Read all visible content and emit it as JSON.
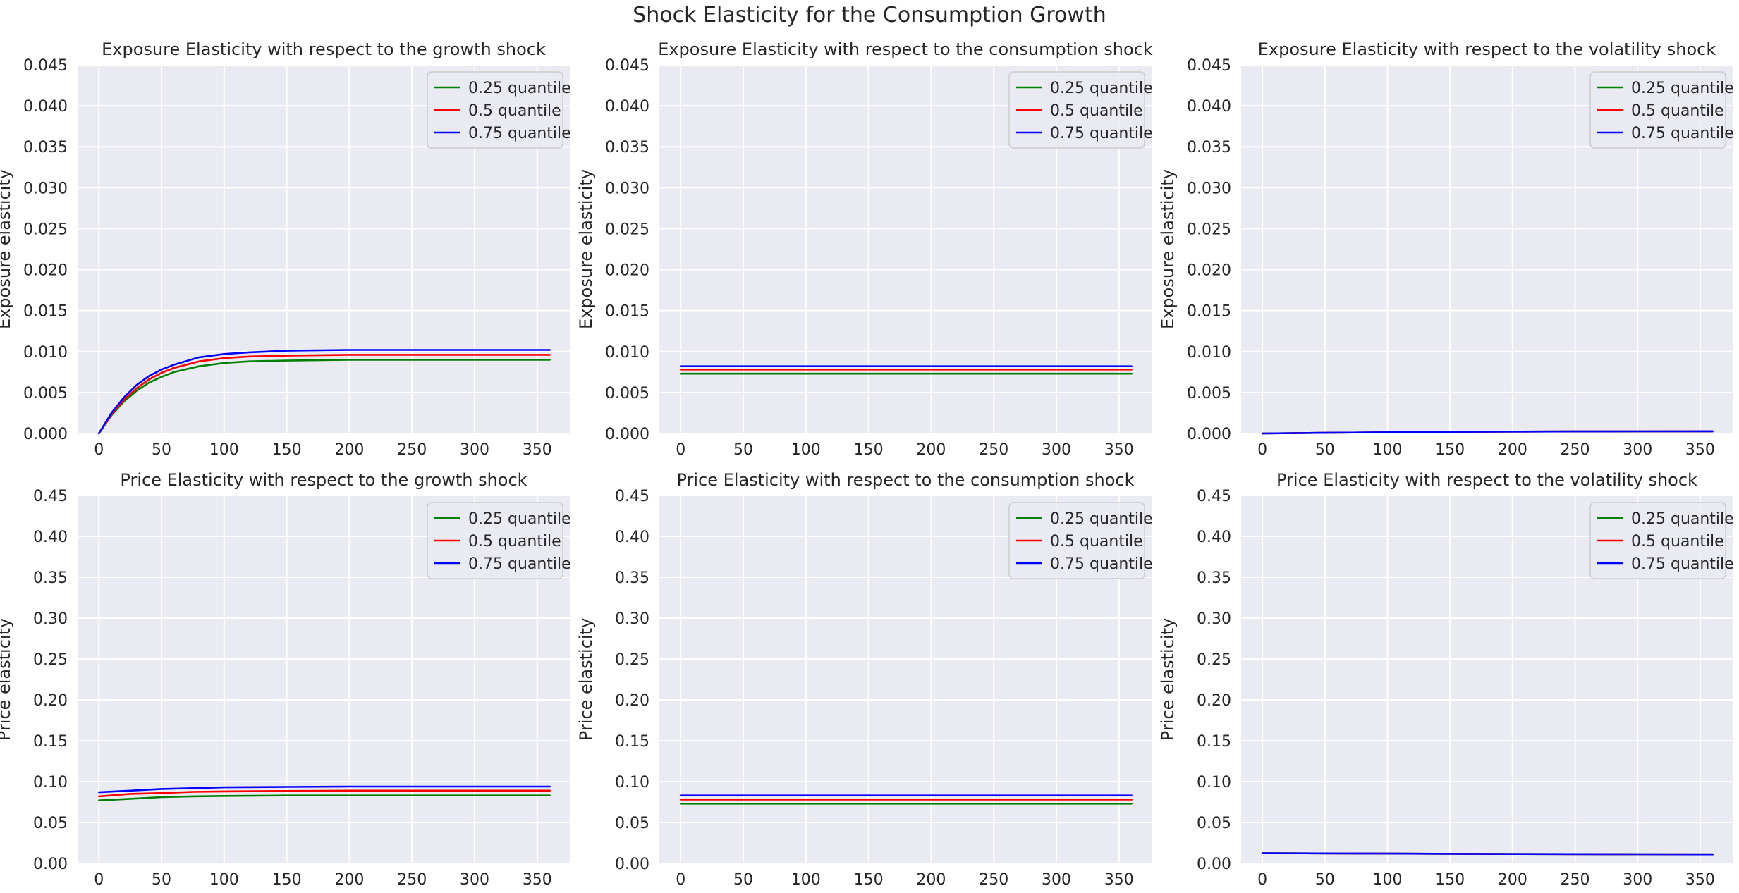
{
  "figure": {
    "suptitle": "Shock Elasticity for the Consumption Growth"
  },
  "colors": {
    "background": "#eaeaf2",
    "grid": "#ffffff",
    "q25": "#008000",
    "q50": "#ff0000",
    "q75": "#0000ff",
    "text": "#262626"
  },
  "chart_data": [
    {
      "type": "line",
      "title": "Exposure Elasticity with respect to the growth shock",
      "ylabel": "Exposure elasticity",
      "xlabel": "",
      "xlim": [
        -17,
        376
      ],
      "ylim": [
        0,
        0.045
      ],
      "xticks": [
        0,
        50,
        100,
        150,
        200,
        250,
        300,
        350
      ],
      "yticks": [
        "0.000",
        "0.005",
        "0.010",
        "0.015",
        "0.020",
        "0.025",
        "0.030",
        "0.035",
        "0.040",
        "0.045"
      ],
      "grid": true,
      "legend": "top-right",
      "x": [
        0,
        10,
        20,
        30,
        40,
        50,
        60,
        80,
        100,
        120,
        150,
        200,
        250,
        300,
        360
      ],
      "series": [
        {
          "name": "0.25 quantile",
          "color": "#008000",
          "values": [
            0,
            0.0022,
            0.0039,
            0.0052,
            0.0062,
            0.0069,
            0.0075,
            0.0082,
            0.0086,
            0.0088,
            0.0089,
            0.009,
            0.009,
            0.009,
            0.009
          ]
        },
        {
          "name": "0.5 quantile",
          "color": "#ff0000",
          "values": [
            0,
            0.0023,
            0.0041,
            0.0055,
            0.0066,
            0.0074,
            0.008,
            0.0088,
            0.0092,
            0.0094,
            0.0095,
            0.0096,
            0.0096,
            0.0096,
            0.0096
          ]
        },
        {
          "name": "0.75 quantile",
          "color": "#0000ff",
          "values": [
            0,
            0.0025,
            0.0044,
            0.0059,
            0.007,
            0.0078,
            0.0084,
            0.0093,
            0.0097,
            0.0099,
            0.0101,
            0.0102,
            0.0102,
            0.0102,
            0.0102
          ]
        }
      ]
    },
    {
      "type": "line",
      "title": "Exposure Elasticity with respect to the consumption shock",
      "ylabel": "Exposure elasticity",
      "xlabel": "",
      "xlim": [
        -17,
        376
      ],
      "ylim": [
        0,
        0.045
      ],
      "xticks": [
        0,
        50,
        100,
        150,
        200,
        250,
        300,
        350
      ],
      "yticks": [
        "0.000",
        "0.005",
        "0.010",
        "0.015",
        "0.020",
        "0.025",
        "0.030",
        "0.035",
        "0.040",
        "0.045"
      ],
      "grid": true,
      "legend": "top-right",
      "x": [
        0,
        360
      ],
      "series": [
        {
          "name": "0.25 quantile",
          "color": "#008000",
          "values": [
            0.0073,
            0.0073
          ]
        },
        {
          "name": "0.5 quantile",
          "color": "#ff0000",
          "values": [
            0.0078,
            0.0078
          ]
        },
        {
          "name": "0.75 quantile",
          "color": "#0000ff",
          "values": [
            0.0082,
            0.0082
          ]
        }
      ]
    },
    {
      "type": "line",
      "title": "Exposure Elasticity with respect to the volatility shock",
      "ylabel": "Exposure elasticity",
      "xlabel": "",
      "xlim": [
        -17,
        376
      ],
      "ylim": [
        0,
        0.045
      ],
      "xticks": [
        0,
        50,
        100,
        150,
        200,
        250,
        300,
        350
      ],
      "yticks": [
        "0.000",
        "0.005",
        "0.010",
        "0.015",
        "0.020",
        "0.025",
        "0.030",
        "0.035",
        "0.040",
        "0.045"
      ],
      "grid": true,
      "legend": "top-right",
      "x": [
        0,
        50,
        100,
        150,
        200,
        250,
        300,
        360
      ],
      "series": [
        {
          "name": "0.25 quantile",
          "color": "#008000",
          "values": [
            0,
            8e-05,
            0.00015,
            0.0002,
            0.00023,
            0.00025,
            0.00026,
            0.00027
          ]
        },
        {
          "name": "0.5 quantile",
          "color": "#ff0000",
          "values": [
            0,
            8e-05,
            0.00015,
            0.0002,
            0.00023,
            0.00025,
            0.00026,
            0.00027
          ]
        },
        {
          "name": "0.75 quantile",
          "color": "#0000ff",
          "values": [
            0,
            8e-05,
            0.00015,
            0.0002,
            0.00023,
            0.00025,
            0.00026,
            0.00027
          ]
        }
      ]
    },
    {
      "type": "line",
      "title": "Price Elasticity with respect to the growth shock",
      "ylabel": "Price elasticity",
      "xlabel": "",
      "xlim": [
        -17,
        376
      ],
      "ylim": [
        0,
        0.45
      ],
      "xticks": [
        0,
        50,
        100,
        150,
        200,
        250,
        300,
        350
      ],
      "yticks": [
        "0.00",
        "0.05",
        "0.10",
        "0.15",
        "0.20",
        "0.25",
        "0.30",
        "0.35",
        "0.40",
        "0.45"
      ],
      "grid": true,
      "legend": "top-right",
      "x": [
        0,
        25,
        50,
        75,
        100,
        150,
        200,
        250,
        300,
        360
      ],
      "series": [
        {
          "name": "0.25 quantile",
          "color": "#008000",
          "values": [
            0.077,
            0.079,
            0.081,
            0.082,
            0.0825,
            0.083,
            0.083,
            0.083,
            0.083,
            0.083
          ]
        },
        {
          "name": "0.5 quantile",
          "color": "#ff0000",
          "values": [
            0.082,
            0.085,
            0.086,
            0.0875,
            0.088,
            0.0885,
            0.089,
            0.089,
            0.089,
            0.089
          ]
        },
        {
          "name": "0.75 quantile",
          "color": "#0000ff",
          "values": [
            0.087,
            0.089,
            0.091,
            0.092,
            0.093,
            0.0935,
            0.094,
            0.094,
            0.094,
            0.094
          ]
        }
      ]
    },
    {
      "type": "line",
      "title": "Price Elasticity with respect to the consumption shock",
      "ylabel": "Price elasticity",
      "xlabel": "",
      "xlim": [
        -17,
        376
      ],
      "ylim": [
        0,
        0.45
      ],
      "xticks": [
        0,
        50,
        100,
        150,
        200,
        250,
        300,
        350
      ],
      "yticks": [
        "0.00",
        "0.05",
        "0.10",
        "0.15",
        "0.20",
        "0.25",
        "0.30",
        "0.35",
        "0.40",
        "0.45"
      ],
      "grid": true,
      "legend": "top-right",
      "x": [
        0,
        360
      ],
      "series": [
        {
          "name": "0.25 quantile",
          "color": "#008000",
          "values": [
            0.073,
            0.073
          ]
        },
        {
          "name": "0.5 quantile",
          "color": "#ff0000",
          "values": [
            0.078,
            0.078
          ]
        },
        {
          "name": "0.75 quantile",
          "color": "#0000ff",
          "values": [
            0.083,
            0.083
          ]
        }
      ]
    },
    {
      "type": "line",
      "title": "Price Elasticity with respect to the volatility shock",
      "ylabel": "Price elasticity",
      "xlabel": "",
      "xlim": [
        -17,
        376
      ],
      "ylim": [
        0,
        0.45
      ],
      "xticks": [
        0,
        50,
        100,
        150,
        200,
        250,
        300,
        350
      ],
      "yticks": [
        "0.00",
        "0.05",
        "0.10",
        "0.15",
        "0.20",
        "0.25",
        "0.30",
        "0.35",
        "0.40",
        "0.45"
      ],
      "grid": true,
      "legend": "top-right",
      "x": [
        0,
        100,
        200,
        300,
        360
      ],
      "series": [
        {
          "name": "0.25 quantile",
          "color": "#008000",
          "values": [
            0.0125,
            0.012,
            0.0115,
            0.0112,
            0.011
          ]
        },
        {
          "name": "0.5 quantile",
          "color": "#ff0000",
          "values": [
            0.0125,
            0.012,
            0.0115,
            0.0112,
            0.011
          ]
        },
        {
          "name": "0.75 quantile",
          "color": "#0000ff",
          "values": [
            0.0125,
            0.012,
            0.0115,
            0.0112,
            0.011
          ]
        }
      ]
    }
  ]
}
